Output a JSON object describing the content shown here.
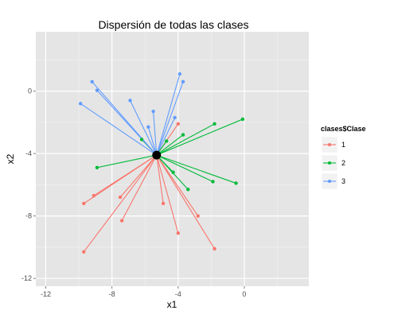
{
  "chart_data": {
    "type": "scatter",
    "title": "Dispersión de todas las clases",
    "xlabel": "x1",
    "ylabel": "x2",
    "xlim": [
      -12.6,
      3.9
    ],
    "ylim": [
      -12.5,
      3.8
    ],
    "x_ticks": [
      -12,
      -8,
      -4,
      0
    ],
    "y_ticks": [
      0,
      -4,
      -8,
      -12
    ],
    "grid": true,
    "center": {
      "x": -5.3,
      "y": -4.1
    },
    "legend": {
      "title": "clases$Clase",
      "position": "right",
      "entries": [
        {
          "label": "1",
          "color": "#F8766D"
        },
        {
          "label": "2",
          "color": "#00BA38"
        },
        {
          "label": "3",
          "color": "#619CFF"
        }
      ]
    },
    "series": [
      {
        "name": "1",
        "color": "#F8766D",
        "points": [
          {
            "x": -9.1,
            "y": -6.7
          },
          {
            "x": -9.7,
            "y": -7.2
          },
          {
            "x": -7.5,
            "y": -6.8
          },
          {
            "x": -7.4,
            "y": -8.3
          },
          {
            "x": -9.7,
            "y": -10.3
          },
          {
            "x": -4.9,
            "y": -7.2
          },
          {
            "x": -4.0,
            "y": -9.1
          },
          {
            "x": -2.8,
            "y": -8.0
          },
          {
            "x": -1.8,
            "y": -10.1
          },
          {
            "x": -4.0,
            "y": -2.1
          }
        ]
      },
      {
        "name": "2",
        "color": "#00BA38",
        "points": [
          {
            "x": -8.9,
            "y": -4.9
          },
          {
            "x": -6.2,
            "y": -3.1
          },
          {
            "x": -4.7,
            "y": -3.2
          },
          {
            "x": -3.7,
            "y": -2.8
          },
          {
            "x": -1.8,
            "y": -2.1
          },
          {
            "x": -0.1,
            "y": -1.8
          },
          {
            "x": -4.3,
            "y": -5.2
          },
          {
            "x": -3.4,
            "y": -6.3
          },
          {
            "x": -1.9,
            "y": -5.8
          },
          {
            "x": -0.5,
            "y": -5.9
          }
        ]
      },
      {
        "name": "3",
        "color": "#619CFF",
        "points": [
          {
            "x": -9.2,
            "y": 0.6
          },
          {
            "x": -8.9,
            "y": 0.05
          },
          {
            "x": -9.9,
            "y": -0.8
          },
          {
            "x": -6.9,
            "y": -0.6
          },
          {
            "x": -5.5,
            "y": -1.3
          },
          {
            "x": -5.8,
            "y": -2.3
          },
          {
            "x": -4.2,
            "y": -1.7
          },
          {
            "x": -3.9,
            "y": 1.1
          },
          {
            "x": -3.7,
            "y": 0.6
          }
        ]
      }
    ]
  }
}
